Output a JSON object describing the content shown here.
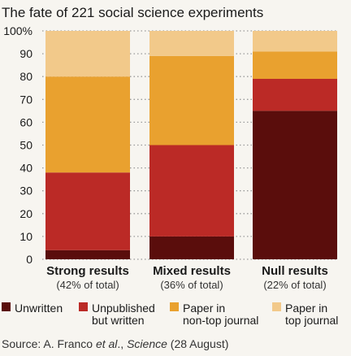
{
  "chart_data": {
    "type": "bar",
    "stacked": true,
    "title": "The fate of 221 social science experiments",
    "categories": [
      "Strong results",
      "Mixed results",
      "Null results"
    ],
    "category_subtitles": [
      "(42% of total)",
      "(36% of total)",
      "(22% of total)"
    ],
    "series": [
      {
        "name": "Unwritten",
        "color": "#5a0d0c",
        "values": [
          4,
          10,
          65
        ]
      },
      {
        "name": "Unpublished but written",
        "color": "#bb2a26",
        "values": [
          34,
          40,
          14
        ]
      },
      {
        "name": "Paper in non-top journal",
        "color": "#e9a12f",
        "values": [
          42,
          39,
          12
        ]
      },
      {
        "name": "Paper in top journal",
        "color": "#f2c98a",
        "values": [
          20,
          11,
          9
        ]
      }
    ],
    "ylim": [
      0,
      100
    ],
    "yticks": [
      "0",
      "10",
      "20",
      "30",
      "40",
      "50",
      "60",
      "70",
      "80",
      "90",
      "100%"
    ],
    "grid": "dotted",
    "legend_position": "bottom",
    "legend_labels": [
      [
        "Unwritten"
      ],
      [
        "Unpublished",
        "but written"
      ],
      [
        "Paper in",
        "non-top journal"
      ],
      [
        "Paper in",
        "top journal"
      ]
    ],
    "source": {
      "prefix": "Source: A. Franco ",
      "etal": "et al",
      "mid": "., ",
      "journal": "Science",
      "suffix": " (28 August)"
    }
  }
}
